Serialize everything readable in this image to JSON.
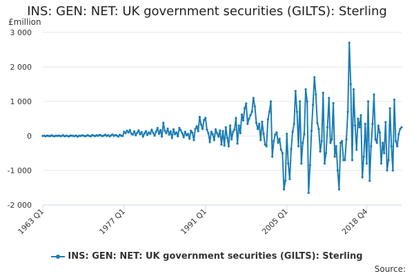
{
  "chart_data": {
    "type": "line",
    "title": "INS: GEN: NET: UK government securities (GILTS): Sterling",
    "ylabel": "£million",
    "xlabel": "",
    "ylim": [
      -2000,
      3000
    ],
    "y_ticks": [
      3000,
      2000,
      1000,
      0,
      -1000,
      -2000
    ],
    "y_tick_labels": [
      "3 000",
      "2 000",
      "1 000",
      "0",
      "-1 000",
      "-2 000"
    ],
    "x_tick_labels": [
      "1963 Q1",
      "1977 Q1",
      "1991 Q1",
      "2005 Q1",
      "2018 Q4"
    ],
    "x_tick_index": [
      0,
      56,
      112,
      168,
      223
    ],
    "grid": true,
    "legend_position": "bottom",
    "series": [
      {
        "name": "INS: GEN: NET: UK government securities (GILTS): Sterling",
        "color": "#1b7db5",
        "values": [
          0,
          5,
          -10,
          10,
          0,
          -5,
          15,
          0,
          -10,
          5,
          0,
          10,
          -5,
          0,
          20,
          -10,
          5,
          0,
          -15,
          10,
          5,
          0,
          -5,
          10,
          -20,
          5,
          0,
          15,
          10,
          -10,
          5,
          20,
          0,
          -10,
          25,
          10,
          -5,
          20,
          0,
          30,
          15,
          -5,
          10,
          35,
          0,
          20,
          -10,
          15,
          40,
          0,
          25,
          10,
          -20,
          30,
          5,
          0,
          120,
          80,
          150,
          100,
          170,
          60,
          40,
          130,
          20,
          90,
          160,
          50,
          110,
          -20,
          70,
          140,
          30,
          100,
          60,
          180,
          90,
          10,
          120,
          230,
          60,
          170,
          -20,
          380,
          150,
          80,
          210,
          40,
          130,
          -60,
          190,
          50,
          100,
          -10,
          230,
          160,
          80,
          -40,
          120,
          20,
          60,
          -80,
          150,
          90,
          -120,
          200,
          280,
          140,
          550,
          330,
          200,
          460,
          520,
          180,
          80,
          -180,
          120,
          50,
          -120,
          190,
          80,
          -20,
          160,
          -250,
          140,
          -280,
          250,
          -60,
          -300,
          300,
          -100,
          120,
          180,
          520,
          -220,
          300,
          80,
          620,
          450,
          800,
          940,
          350,
          500,
          600,
          700,
          1100,
          850,
          380,
          200,
          350,
          -120,
          410,
          60,
          -250,
          -300,
          480,
          700,
          1000,
          -600,
          -150,
          40,
          100,
          -200,
          -80,
          -400,
          -500,
          -1550,
          -1300,
          60,
          -800,
          -1250,
          -380,
          120,
          350,
          1300,
          700,
          -300,
          1000,
          -800,
          -200,
          50,
          1350,
          1000,
          -1650,
          -850,
          150,
          900,
          1700,
          1200,
          380,
          200,
          -450,
          -150,
          1250,
          -800,
          -500,
          250,
          1100,
          -200,
          -100,
          950,
          -600,
          -300,
          -1000,
          -1550,
          -200,
          -150,
          -700,
          -700,
          -100,
          700,
          2700,
          1500,
          -700,
          1350,
          300,
          -400,
          500,
          250,
          600,
          -1200,
          -600,
          350,
          -800,
          1000,
          -1300,
          -300,
          350,
          1200,
          -100,
          -200,
          300,
          100,
          -800,
          -200,
          -500,
          400,
          -1000,
          -700,
          800,
          -300,
          -1000,
          1050,
          -150,
          -300,
          50,
          200,
          250
        ]
      }
    ]
  },
  "source_label": "Source:"
}
